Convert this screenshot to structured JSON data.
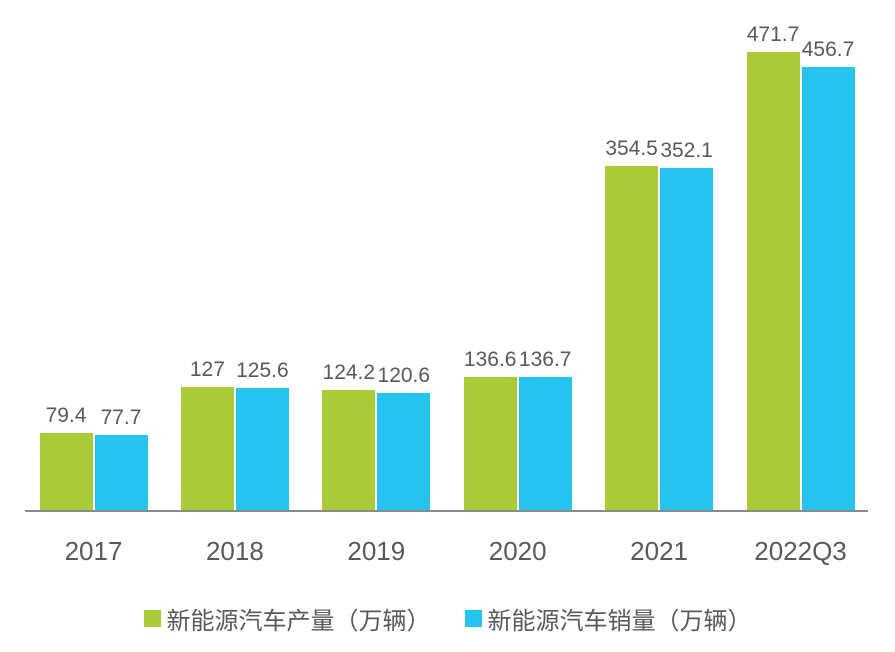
{
  "chart_data": {
    "type": "bar",
    "title": "",
    "xlabel": "",
    "ylabel": "",
    "categories": [
      "2017",
      "2018",
      "2019",
      "2020",
      "2021",
      "2022Q3"
    ],
    "series": [
      {
        "name": "新能源汽车产量（万辆）",
        "color": "#a9cb38",
        "values": [
          79.4,
          127,
          124.2,
          136.6,
          354.5,
          471.7
        ]
      },
      {
        "name": "新能源汽车销量（万辆）",
        "color": "#24c4ee",
        "values": [
          77.7,
          125.6,
          120.6,
          136.7,
          352.1,
          456.7
        ]
      }
    ],
    "value_labels": [
      [
        "79.4",
        "127",
        "124.2",
        "136.6",
        "354.5",
        "471.7"
      ],
      [
        "77.7",
        "125.6",
        "120.6",
        "136.7",
        "352.1",
        "456.7"
      ]
    ],
    "ylim": [
      0,
      500
    ],
    "grid": false,
    "legend_position": "bottom",
    "axis_color": "#8a8a8a",
    "text_color": "#595959"
  }
}
